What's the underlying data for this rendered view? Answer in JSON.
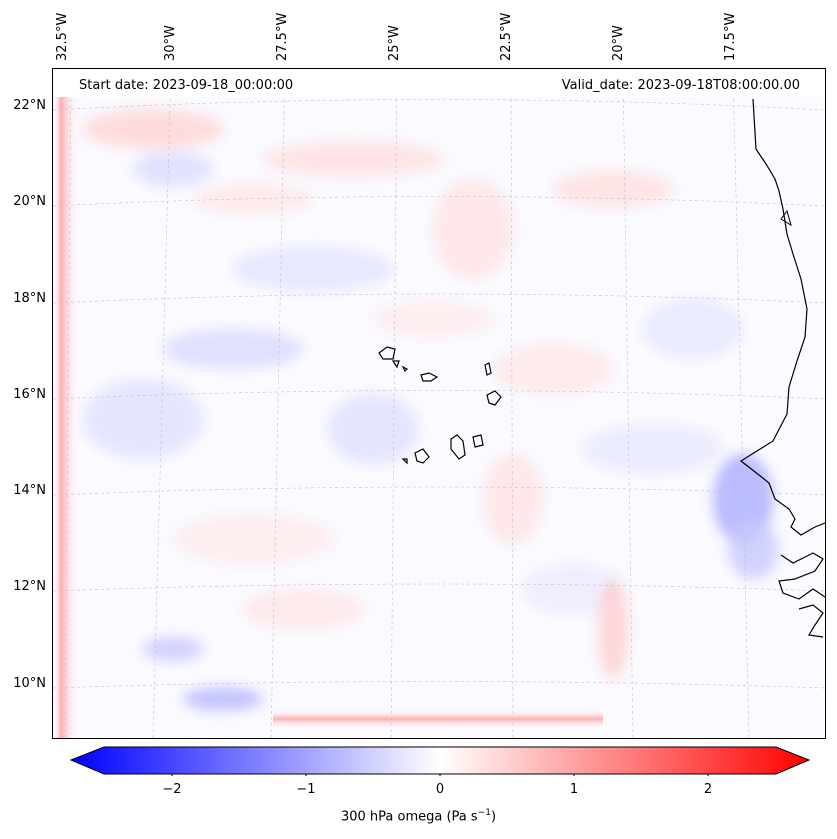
{
  "header": {
    "start_date": "Start date: 2023-09-18_00:00:00",
    "valid_date": "Valid_date: 2023-09-18T08:00:00.00"
  },
  "longitude_labels": [
    "32.5°W",
    "30°W",
    "27.5°W",
    "25°W",
    "22.5°W",
    "20°W",
    "17.5°W"
  ],
  "latitude_labels": [
    "22°N",
    "20°N",
    "18°N",
    "16°N",
    "14°N",
    "12°N",
    "10°N"
  ],
  "colorbar": {
    "label": "300 hPa omega (Pa s",
    "label_superscript": "−1",
    "label_suffix": ")",
    "tick_labels": [
      "−2",
      "−1",
      "0",
      "1",
      "2"
    ],
    "min_color": "#0000ff",
    "mid_color": "#ffffff",
    "max_color": "#ff0000",
    "range": [
      -2.5,
      2.5
    ]
  },
  "map": {
    "coastline_color": "#000000",
    "gridline_color": "#b0b0b0",
    "field_cmap": "bwr"
  }
}
